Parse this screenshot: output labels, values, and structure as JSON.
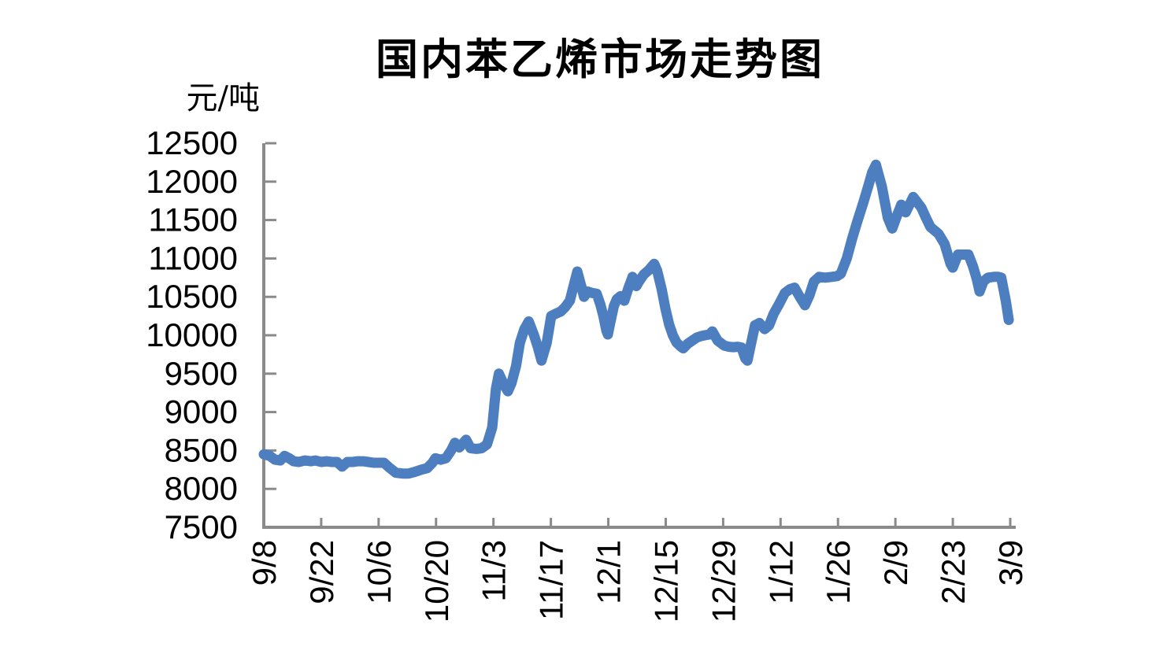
{
  "page": {
    "background": "#ffffff"
  },
  "chart_data": {
    "type": "line",
    "title": "国内苯乙烯市场走势图",
    "ylabel": "元/吨",
    "xlabel": "",
    "ylim": [
      7500,
      12500
    ],
    "y_tick_step": 500,
    "y_ticks": [
      12500,
      12000,
      11500,
      11000,
      10500,
      10000,
      9500,
      9000,
      8500,
      8000,
      7500
    ],
    "x_tick_labels": [
      "9/8",
      "9/22",
      "10/6",
      "10/20",
      "11/3",
      "11/17",
      "12/1",
      "12/15",
      "12/29",
      "1/12",
      "1/26",
      "2/9",
      "2/23",
      "3/9"
    ],
    "grid": false,
    "legend": "none",
    "styles": {
      "line_color": "#4D7EBF",
      "axis_color": "#8A8A8A",
      "text_color": "#000000",
      "line_width": 13
    },
    "series": [
      {
        "x_encoding": "fraction of x-axis from 9/8 (0.0) to 3/9 (1.0)",
        "y_encoding": "price in yuan/ton",
        "points": [
          [
            0.0,
            8450
          ],
          [
            0.008,
            8430
          ],
          [
            0.015,
            8380
          ],
          [
            0.022,
            8370
          ],
          [
            0.028,
            8430
          ],
          [
            0.034,
            8400
          ],
          [
            0.04,
            8360
          ],
          [
            0.047,
            8350
          ],
          [
            0.055,
            8370
          ],
          [
            0.063,
            8360
          ],
          [
            0.069,
            8370
          ],
          [
            0.077,
            8350
          ],
          [
            0.084,
            8360
          ],
          [
            0.091,
            8350
          ],
          [
            0.098,
            8350
          ],
          [
            0.105,
            8290
          ],
          [
            0.112,
            8350
          ],
          [
            0.119,
            8350
          ],
          [
            0.126,
            8360
          ],
          [
            0.133,
            8360
          ],
          [
            0.14,
            8350
          ],
          [
            0.147,
            8340
          ],
          [
            0.154,
            8340
          ],
          [
            0.161,
            8340
          ],
          [
            0.169,
            8270
          ],
          [
            0.177,
            8210
          ],
          [
            0.186,
            8200
          ],
          [
            0.194,
            8200
          ],
          [
            0.202,
            8220
          ],
          [
            0.211,
            8250
          ],
          [
            0.219,
            8270
          ],
          [
            0.226,
            8340
          ],
          [
            0.23,
            8400
          ],
          [
            0.237,
            8380
          ],
          [
            0.244,
            8400
          ],
          [
            0.251,
            8500
          ],
          [
            0.256,
            8600
          ],
          [
            0.262,
            8540
          ],
          [
            0.271,
            8640
          ],
          [
            0.277,
            8530
          ],
          [
            0.285,
            8520
          ],
          [
            0.292,
            8530
          ],
          [
            0.299,
            8580
          ],
          [
            0.306,
            8800
          ],
          [
            0.311,
            9300
          ],
          [
            0.315,
            9500
          ],
          [
            0.322,
            9350
          ],
          [
            0.327,
            9270
          ],
          [
            0.332,
            9380
          ],
          [
            0.338,
            9600
          ],
          [
            0.343,
            9900
          ],
          [
            0.349,
            10080
          ],
          [
            0.355,
            10180
          ],
          [
            0.362,
            10000
          ],
          [
            0.367,
            9850
          ],
          [
            0.372,
            9670
          ],
          [
            0.379,
            9900
          ],
          [
            0.385,
            10250
          ],
          [
            0.391,
            10280
          ],
          [
            0.398,
            10310
          ],
          [
            0.404,
            10370
          ],
          [
            0.41,
            10450
          ],
          [
            0.416,
            10680
          ],
          [
            0.42,
            10830
          ],
          [
            0.425,
            10650
          ],
          [
            0.429,
            10500
          ],
          [
            0.434,
            10570
          ],
          [
            0.44,
            10550
          ],
          [
            0.446,
            10540
          ],
          [
            0.451,
            10400
          ],
          [
            0.455,
            10250
          ],
          [
            0.459,
            10060
          ],
          [
            0.461,
            10010
          ],
          [
            0.465,
            10200
          ],
          [
            0.469,
            10380
          ],
          [
            0.473,
            10470
          ],
          [
            0.478,
            10510
          ],
          [
            0.483,
            10450
          ],
          [
            0.488,
            10600
          ],
          [
            0.494,
            10760
          ],
          [
            0.499,
            10640
          ],
          [
            0.504,
            10720
          ],
          [
            0.509,
            10790
          ],
          [
            0.516,
            10850
          ],
          [
            0.523,
            10930
          ],
          [
            0.527,
            10840
          ],
          [
            0.533,
            10600
          ],
          [
            0.538,
            10350
          ],
          [
            0.543,
            10140
          ],
          [
            0.548,
            10000
          ],
          [
            0.553,
            9905
          ],
          [
            0.559,
            9850
          ],
          [
            0.562,
            9830
          ],
          [
            0.568,
            9890
          ],
          [
            0.574,
            9930
          ],
          [
            0.58,
            9970
          ],
          [
            0.586,
            9990
          ],
          [
            0.591,
            10000
          ],
          [
            0.597,
            10010
          ],
          [
            0.601,
            10050
          ],
          [
            0.608,
            9930
          ],
          [
            0.617,
            9865
          ],
          [
            0.623,
            9850
          ],
          [
            0.629,
            9845
          ],
          [
            0.635,
            9850
          ],
          [
            0.64,
            9840
          ],
          [
            0.645,
            9700
          ],
          [
            0.648,
            9670
          ],
          [
            0.653,
            9900
          ],
          [
            0.658,
            10130
          ],
          [
            0.664,
            10160
          ],
          [
            0.671,
            10080
          ],
          [
            0.677,
            10130
          ],
          [
            0.683,
            10280
          ],
          [
            0.69,
            10400
          ],
          [
            0.698,
            10550
          ],
          [
            0.705,
            10600
          ],
          [
            0.711,
            10620
          ],
          [
            0.718,
            10500
          ],
          [
            0.725,
            10390
          ],
          [
            0.731,
            10520
          ],
          [
            0.737,
            10700
          ],
          [
            0.744,
            10760
          ],
          [
            0.752,
            10750
          ],
          [
            0.761,
            10760
          ],
          [
            0.768,
            10770
          ],
          [
            0.773,
            10800
          ],
          [
            0.781,
            11000
          ],
          [
            0.788,
            11250
          ],
          [
            0.795,
            11480
          ],
          [
            0.803,
            11720
          ],
          [
            0.81,
            11950
          ],
          [
            0.815,
            12120
          ],
          [
            0.82,
            12220
          ],
          [
            0.828,
            11940
          ],
          [
            0.836,
            11530
          ],
          [
            0.842,
            11390
          ],
          [
            0.848,
            11550
          ],
          [
            0.854,
            11700
          ],
          [
            0.86,
            11600
          ],
          [
            0.87,
            11800
          ],
          [
            0.881,
            11660
          ],
          [
            0.887,
            11530
          ],
          [
            0.893,
            11410
          ],
          [
            0.904,
            11320
          ],
          [
            0.912,
            11190
          ],
          [
            0.92,
            10930
          ],
          [
            0.923,
            10880
          ],
          [
            0.93,
            11050
          ],
          [
            0.936,
            11050
          ],
          [
            0.944,
            11050
          ],
          [
            0.95,
            10900
          ],
          [
            0.955,
            10740
          ],
          [
            0.959,
            10570
          ],
          [
            0.964,
            10700
          ],
          [
            0.97,
            10750
          ],
          [
            0.978,
            10760
          ],
          [
            0.984,
            10760
          ],
          [
            0.988,
            10750
          ],
          [
            0.994,
            10450
          ],
          [
            0.998,
            10200
          ]
        ]
      }
    ]
  }
}
